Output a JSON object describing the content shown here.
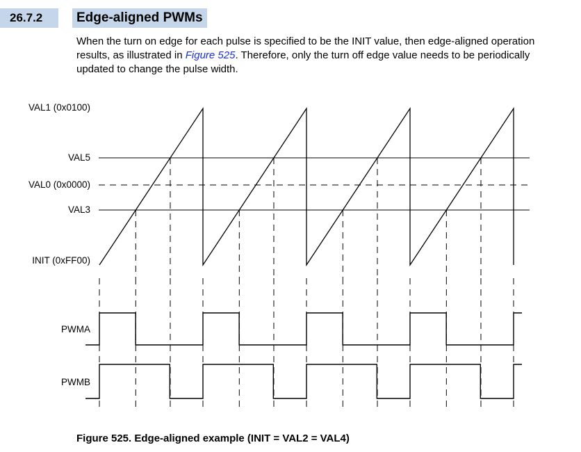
{
  "section": {
    "number": "26.7.2",
    "title": "Edge-aligned PWMs"
  },
  "intro": {
    "text_before": "When the turn on edge for each pulse is specified to be the INIT value, then edge-aligned operation results, as illustrated in ",
    "link_text": "Figure 525",
    "text_after": ". Therefore, only the turn off edge value needs to be periodically updated to change the pulse width."
  },
  "diagram": {
    "levels": {
      "val1": "VAL1 (0x0100)",
      "val5": "VAL5",
      "val0": "VAL0 (0x0000)",
      "val3": "VAL3",
      "init": "INIT (0xFF00)"
    },
    "signals": {
      "pwma": "PWMA",
      "pwmb": "PWMB"
    },
    "periods": 4,
    "pwma_high_fraction": 0.35,
    "pwmb_high_fraction": 0.68
  },
  "figure_caption": "Figure 525. Edge-aligned example (INIT = VAL2 = VAL4)"
}
